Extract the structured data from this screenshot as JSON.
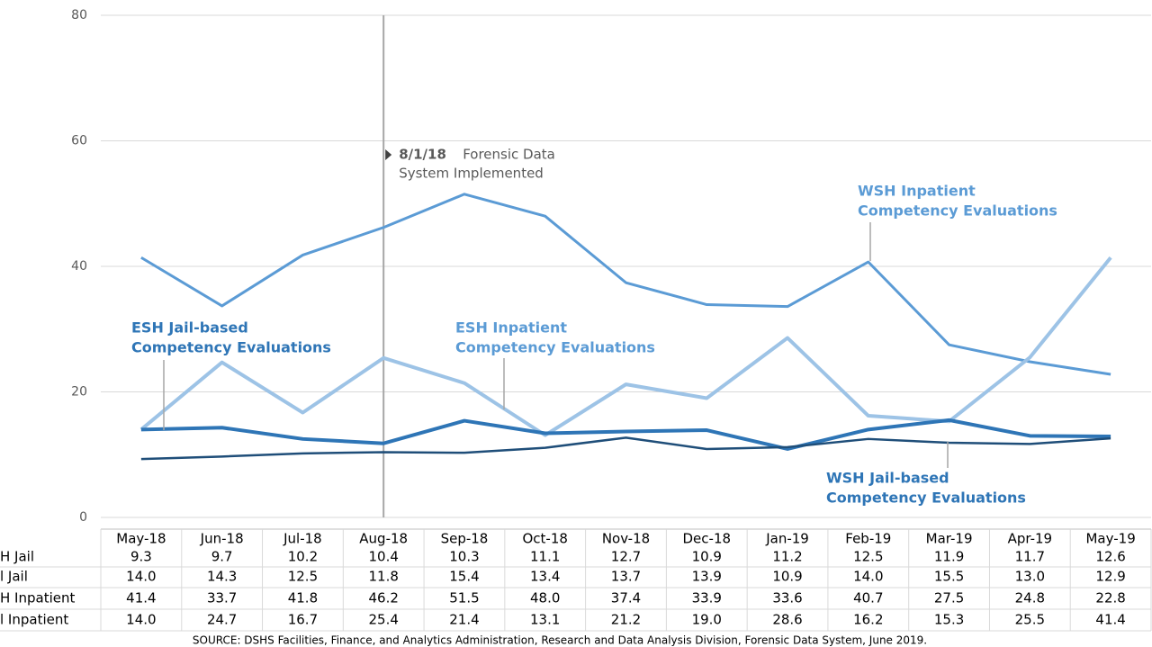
{
  "chart_data": {
    "type": "line",
    "categories": [
      "May-18",
      "Jun-18",
      "Jul-18",
      "Aug-18",
      "Sep-18",
      "Oct-18",
      "Nov-18",
      "Dec-18",
      "Jan-19",
      "Feb-19",
      "Mar-19",
      "Apr-19",
      "May-19"
    ],
    "series": [
      {
        "name": "H Jail",
        "color": "#1f4e79",
        "values": [
          9.3,
          9.7,
          10.2,
          10.4,
          10.3,
          11.1,
          12.7,
          10.9,
          11.2,
          12.5,
          11.9,
          11.7,
          12.6
        ],
        "value_labels": [
          "9.3",
          "9.7",
          "10.2",
          "10.4",
          "10.3",
          "11.1",
          "12.7",
          "10.9",
          "11.2",
          "12.5",
          "11.9",
          "11.7",
          "12.6"
        ]
      },
      {
        "name": "l Jail",
        "color": "#2e75b6",
        "values": [
          14.0,
          14.3,
          12.5,
          11.8,
          15.4,
          13.4,
          13.7,
          13.9,
          10.9,
          14.0,
          15.5,
          13.0,
          12.9
        ],
        "value_labels": [
          "14.0",
          "14.3",
          "12.5",
          "11.8",
          "15.4",
          "13.4",
          "13.7",
          "13.9",
          "10.9",
          "14.0",
          "15.5",
          "13.0",
          "12.9"
        ]
      },
      {
        "name": "H Inpatient",
        "color": "#5b9bd5",
        "values": [
          41.4,
          33.7,
          41.8,
          46.2,
          51.5,
          48.0,
          37.4,
          33.9,
          33.6,
          40.7,
          27.5,
          24.8,
          22.8
        ],
        "value_labels": [
          "41.4",
          "33.7",
          "41.8",
          "46.2",
          "51.5",
          "48.0",
          "37.4",
          "33.9",
          "33.6",
          "40.7",
          "27.5",
          "24.8",
          "22.8"
        ]
      },
      {
        "name": "l Inpatient",
        "color": "#9dc3e6",
        "values": [
          14.0,
          24.7,
          16.7,
          25.4,
          21.4,
          13.1,
          21.2,
          19.0,
          28.6,
          16.2,
          15.3,
          25.5,
          41.4
        ],
        "value_labels": [
          "14.0",
          "24.7",
          "16.7",
          "25.4",
          "21.4",
          "13.1",
          "21.2",
          "19.0",
          "28.6",
          "16.2",
          "15.3",
          "25.5",
          "41.4"
        ]
      }
    ],
    "ylim": [
      0,
      80
    ],
    "yticks": [
      0,
      20,
      40,
      60,
      80
    ],
    "grid": true,
    "event": {
      "date": "8/1/18",
      "text": [
        "Forensic Data",
        "System Implemented"
      ]
    },
    "annotations": [
      {
        "lines": [
          "ESH Jail-based",
          "Competency Evaluations"
        ]
      },
      {
        "lines": [
          "ESH Inpatient",
          "Competency Evaluations"
        ]
      },
      {
        "lines": [
          "WSH Inpatient",
          "Competency Evaluations"
        ]
      },
      {
        "lines": [
          "WSH Jail-based",
          "Competency Evaluations"
        ]
      }
    ],
    "source": "SOURCE: DSHS Facilities, Finance, and Analytics Administration, Research and Data Analysis Division, Forensic Data System, June 2019."
  }
}
